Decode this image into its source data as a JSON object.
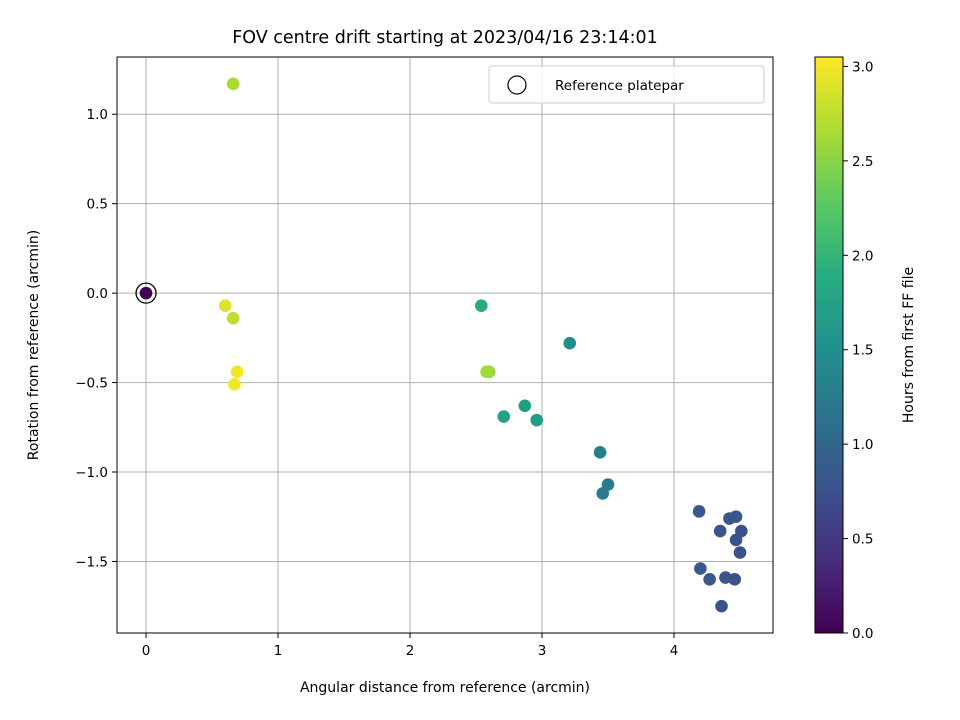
{
  "chart_data": {
    "type": "scatter",
    "title": "FOV centre drift starting at 2023/04/16 23:14:01",
    "xlabel": "Angular distance from reference (arcmin)",
    "ylabel": "Rotation from reference (arcmin)",
    "xlim": [
      -0.22,
      4.75
    ],
    "ylim": [
      -1.9,
      1.32
    ],
    "xticks": [
      0,
      1,
      2,
      3,
      4
    ],
    "xtick_labels": [
      "0",
      "1",
      "2",
      "3",
      "4"
    ],
    "yticks": [
      1.0,
      0.5,
      0.0,
      -0.5,
      -1.0,
      -1.5
    ],
    "ytick_labels": [
      "1.0",
      "0.5",
      "0.0",
      "−0.5",
      "−1.0",
      "−1.5"
    ],
    "grid": true,
    "legend_position": "top-right",
    "legend_entries": [
      "Reference platepar"
    ],
    "colorbar": {
      "label": "Hours from first FF file",
      "colormap": "viridis",
      "range": [
        0.0,
        3.05
      ],
      "ticks": [
        0.0,
        0.5,
        1.0,
        1.5,
        2.0,
        2.5,
        3.0
      ],
      "tick_labels": [
        "0.0",
        "0.5",
        "1.0",
        "1.5",
        "2.0",
        "2.5",
        "3.0"
      ]
    },
    "reference_point": {
      "x": 0.0,
      "y": 0.0
    },
    "points": [
      {
        "x": 0.0,
        "y": 0.0,
        "c": 0.0
      },
      {
        "x": 4.19,
        "y": -1.22,
        "c": 0.85
      },
      {
        "x": 4.42,
        "y": -1.26,
        "c": 0.8
      },
      {
        "x": 4.47,
        "y": -1.25,
        "c": 0.8
      },
      {
        "x": 4.51,
        "y": -1.33,
        "c": 0.75
      },
      {
        "x": 4.35,
        "y": -1.33,
        "c": 0.8
      },
      {
        "x": 4.47,
        "y": -1.38,
        "c": 0.78
      },
      {
        "x": 4.5,
        "y": -1.45,
        "c": 0.75
      },
      {
        "x": 4.2,
        "y": -1.54,
        "c": 0.85
      },
      {
        "x": 4.27,
        "y": -1.6,
        "c": 0.82
      },
      {
        "x": 4.39,
        "y": -1.59,
        "c": 0.8
      },
      {
        "x": 4.46,
        "y": -1.6,
        "c": 0.78
      },
      {
        "x": 4.36,
        "y": -1.75,
        "c": 0.8
      },
      {
        "x": 3.44,
        "y": -0.89,
        "c": 1.3
      },
      {
        "x": 3.5,
        "y": -1.07,
        "c": 1.25
      },
      {
        "x": 3.46,
        "y": -1.12,
        "c": 1.25
      },
      {
        "x": 3.21,
        "y": -0.28,
        "c": 1.5
      },
      {
        "x": 2.96,
        "y": -0.71,
        "c": 1.65
      },
      {
        "x": 2.87,
        "y": -0.63,
        "c": 1.68
      },
      {
        "x": 2.71,
        "y": -0.69,
        "c": 1.75
      },
      {
        "x": 2.54,
        "y": -0.07,
        "c": 1.85
      },
      {
        "x": 2.6,
        "y": -0.44,
        "c": 2.55
      },
      {
        "x": 2.58,
        "y": -0.44,
        "c": 2.6
      },
      {
        "x": 0.66,
        "y": 1.17,
        "c": 2.65
      },
      {
        "x": 0.66,
        "y": -0.14,
        "c": 2.75
      },
      {
        "x": 0.6,
        "y": -0.07,
        "c": 2.9
      },
      {
        "x": 0.69,
        "y": -0.44,
        "c": 3.0
      },
      {
        "x": 0.67,
        "y": -0.51,
        "c": 3.0
      }
    ]
  }
}
